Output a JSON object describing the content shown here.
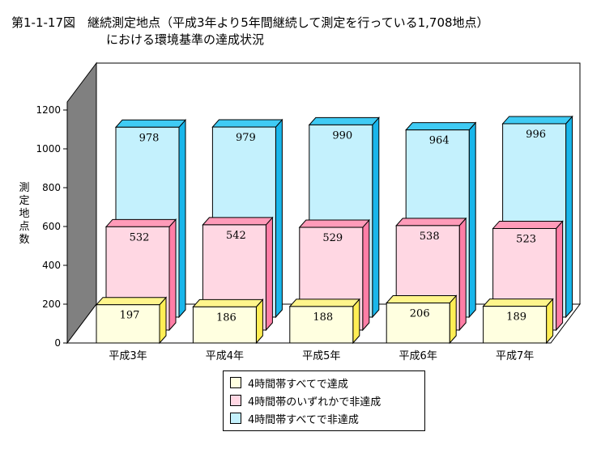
{
  "title_line1": "第1-1-17図　継続測定地点（平成3年より5年間継続して測定を行っている1,708地点）",
  "title_line2": "における環境基準の達成状況",
  "chart_data": {
    "type": "bar",
    "stacked": false,
    "three_d": true,
    "categories": [
      "平成3年",
      "平成4年",
      "平成5年",
      "平成6年",
      "平成7年"
    ],
    "ylabel": "測定地点数",
    "ylim": [
      0,
      1200
    ],
    "yticks": [
      0,
      200,
      400,
      600,
      800,
      1000,
      1200
    ],
    "grid": false,
    "legend_position": "bottom-center",
    "series": [
      {
        "name": "4時間帯すべてで達成",
        "values": [
          197,
          186,
          188,
          206,
          189
        ],
        "colors": {
          "front": "#FFFFE0",
          "top": "#FFF58C",
          "side": "#FFEE55"
        }
      },
      {
        "name": "4時間帯のいずれかで非達成",
        "values": [
          532,
          542,
          529,
          538,
          523
        ],
        "colors": {
          "front": "#FFD7E3",
          "top": "#FF9BB9",
          "side": "#FF7EA6"
        }
      },
      {
        "name": "4時間帯すべてで非達成",
        "values": [
          978,
          979,
          990,
          964,
          996
        ],
        "colors": {
          "front": "#C4F1FD",
          "top": "#3FCBF4",
          "side": "#19B6EB"
        }
      }
    ]
  }
}
